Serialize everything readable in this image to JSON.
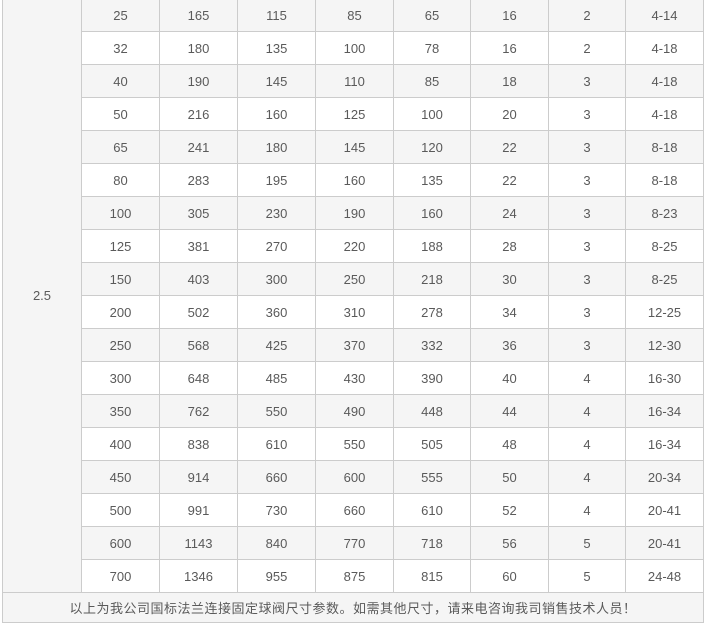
{
  "colors": {
    "stripe_gray": "#f5f5f5",
    "row_white": "#ffffff",
    "border": "#cccccc",
    "text": "#5a5a5a"
  },
  "table": {
    "pressure_class": "2.5",
    "rows": [
      [
        "25",
        "165",
        "115",
        "85",
        "65",
        "16",
        "2",
        "4-14"
      ],
      [
        "32",
        "180",
        "135",
        "100",
        "78",
        "16",
        "2",
        "4-18"
      ],
      [
        "40",
        "190",
        "145",
        "110",
        "85",
        "18",
        "3",
        "4-18"
      ],
      [
        "50",
        "216",
        "160",
        "125",
        "100",
        "20",
        "3",
        "4-18"
      ],
      [
        "65",
        "241",
        "180",
        "145",
        "120",
        "22",
        "3",
        "8-18"
      ],
      [
        "80",
        "283",
        "195",
        "160",
        "135",
        "22",
        "3",
        "8-18"
      ],
      [
        "100",
        "305",
        "230",
        "190",
        "160",
        "24",
        "3",
        "8-23"
      ],
      [
        "125",
        "381",
        "270",
        "220",
        "188",
        "28",
        "3",
        "8-25"
      ],
      [
        "150",
        "403",
        "300",
        "250",
        "218",
        "30",
        "3",
        "8-25"
      ],
      [
        "200",
        "502",
        "360",
        "310",
        "278",
        "34",
        "3",
        "12-25"
      ],
      [
        "250",
        "568",
        "425",
        "370",
        "332",
        "36",
        "3",
        "12-30"
      ],
      [
        "300",
        "648",
        "485",
        "430",
        "390",
        "40",
        "4",
        "16-30"
      ],
      [
        "350",
        "762",
        "550",
        "490",
        "448",
        "44",
        "4",
        "16-34"
      ],
      [
        "400",
        "838",
        "610",
        "550",
        "505",
        "48",
        "4",
        "16-34"
      ],
      [
        "450",
        "914",
        "660",
        "600",
        "555",
        "50",
        "4",
        "20-34"
      ],
      [
        "500",
        "991",
        "730",
        "660",
        "610",
        "52",
        "4",
        "20-41"
      ],
      [
        "600",
        "1143",
        "840",
        "770",
        "718",
        "56",
        "5",
        "20-41"
      ],
      [
        "700",
        "1346",
        "955",
        "875",
        "815",
        "60",
        "5",
        "24-48"
      ]
    ],
    "footer_note": "以上为我公司国标法兰连接固定球阀尺寸参数。如需其他尺寸，请来电咨询我司销售技术人员！"
  }
}
